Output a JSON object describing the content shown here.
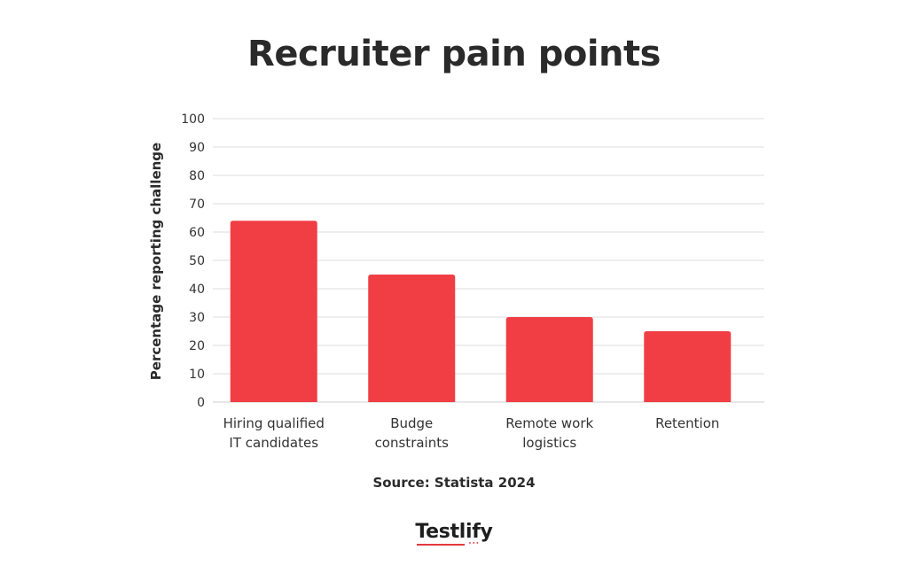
{
  "chart_data": {
    "type": "bar",
    "title": "Recruiter pain points",
    "xlabel": "",
    "ylabel": "Percentage reporting challenge",
    "categories": [
      [
        "Hiring qualified",
        "IT candidates"
      ],
      [
        "Budge",
        "constraints"
      ],
      [
        "Remote work",
        "logistics"
      ],
      [
        "Retention"
      ]
    ],
    "values": [
      64,
      45,
      30,
      25
    ],
    "ylim": [
      0,
      100
    ],
    "yticks": [
      "0",
      "10",
      "20",
      "30",
      "40",
      "50",
      "60",
      "70",
      "80",
      "90",
      "100"
    ],
    "grid": true,
    "legend": "none",
    "bar_color": "#f03e44",
    "grid_color": "#dddddd"
  },
  "source": "Source: Statista 2024",
  "logo": {
    "text": "Testlify",
    "accent_color": "#e5393f"
  }
}
